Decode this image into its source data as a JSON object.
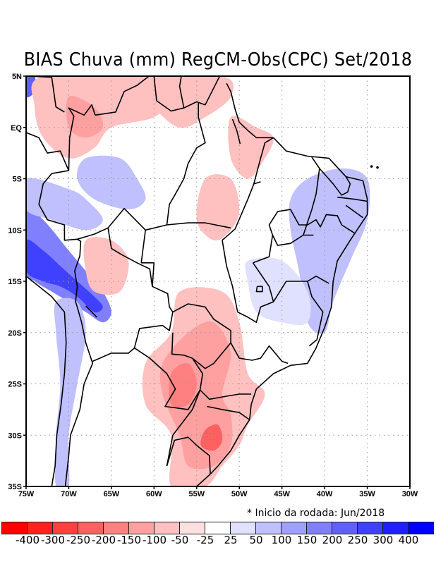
{
  "title": "BIAS Chuva (mm) RegCM-Obs(CPC) Set/2018",
  "note": "* Inicio da rodada: Jun/2018",
  "map": {
    "lon_range": [
      -75,
      -30
    ],
    "lat_range": [
      -35,
      5
    ],
    "y_ticks": [
      {
        "lat": 5,
        "label": "5N"
      },
      {
        "lat": 0,
        "label": "EQ"
      },
      {
        "lat": -5,
        "label": "5S"
      },
      {
        "lat": -10,
        "label": "10S"
      },
      {
        "lat": -15,
        "label": "15S"
      },
      {
        "lat": -20,
        "label": "20S"
      },
      {
        "lat": -25,
        "label": "25S"
      },
      {
        "lat": -30,
        "label": "30S"
      },
      {
        "lat": -35,
        "label": "35S"
      }
    ],
    "x_ticks": [
      {
        "lon": -75,
        "label": "75W"
      },
      {
        "lon": -70,
        "label": "70W"
      },
      {
        "lon": -65,
        "label": "65W"
      },
      {
        "lon": -60,
        "label": "60W"
      },
      {
        "lon": -55,
        "label": "55W"
      },
      {
        "lon": -50,
        "label": "50W"
      },
      {
        "lon": -45,
        "label": "45W"
      },
      {
        "lon": -40,
        "label": "40W"
      },
      {
        "lon": -35,
        "label": "35W"
      },
      {
        "lon": -30,
        "label": "30W"
      }
    ],
    "bias_regions": [
      {
        "name": "andes-peru-wet",
        "level": 4,
        "pts": [
          [
            -75,
            -8
          ],
          [
            -73,
            -9
          ],
          [
            -70,
            -12
          ],
          [
            -68,
            -14
          ],
          [
            -66,
            -16
          ],
          [
            -65,
            -18
          ],
          [
            -66,
            -19
          ],
          [
            -68,
            -18
          ],
          [
            -70,
            -17
          ],
          [
            -72,
            -16
          ],
          [
            -74,
            -15
          ],
          [
            -75,
            -14
          ]
        ]
      },
      {
        "name": "andes-peru-wet-core",
        "level": 6,
        "pts": [
          [
            -75,
            -11
          ],
          [
            -73,
            -12
          ],
          [
            -71,
            -13.5
          ],
          [
            -69,
            -15
          ],
          [
            -67,
            -16.5
          ],
          [
            -66,
            -17.5
          ],
          [
            -67,
            -18
          ],
          [
            -69,
            -16.5
          ],
          [
            -71,
            -15.5
          ],
          [
            -73,
            -15
          ],
          [
            -75,
            -14
          ]
        ]
      },
      {
        "name": "andes-chile-wet",
        "level": 2,
        "pts": [
          [
            -71.5,
            -17
          ],
          [
            -69,
            -17
          ],
          [
            -68,
            -20
          ],
          [
            -69,
            -25
          ],
          [
            -70,
            -30
          ],
          [
            -70,
            -35
          ],
          [
            -71.5,
            -35
          ],
          [
            -71.5,
            -30
          ],
          [
            -71,
            -25
          ],
          [
            -71.5,
            -20
          ]
        ]
      },
      {
        "name": "northwest-amazon-wet",
        "level": 2,
        "pts": [
          [
            -75,
            -5
          ],
          [
            -70,
            -6
          ],
          [
            -68,
            -7
          ],
          [
            -66,
            -9
          ],
          [
            -68,
            -10
          ],
          [
            -72,
            -9
          ],
          [
            -75,
            -8
          ]
        ]
      },
      {
        "name": "central-amazon-wet",
        "level": 2,
        "pts": [
          [
            -68,
            -3
          ],
          [
            -64,
            -3
          ],
          [
            -62,
            -5
          ],
          [
            -61,
            -7
          ],
          [
            -63,
            -8
          ],
          [
            -67,
            -7
          ],
          [
            -69,
            -5
          ]
        ]
      },
      {
        "name": "venezuela-wet",
        "level": 5,
        "pts": [
          [
            -75,
            5
          ],
          [
            -74,
            5
          ],
          [
            -74,
            3.5
          ],
          [
            -75,
            3
          ]
        ]
      },
      {
        "name": "northeast-wet",
        "level": 2,
        "pts": [
          [
            -42,
            -5
          ],
          [
            -38,
            -4
          ],
          [
            -35,
            -5
          ],
          [
            -35,
            -9
          ],
          [
            -37,
            -13
          ],
          [
            -39,
            -17
          ],
          [
            -40,
            -20
          ],
          [
            -42,
            -19
          ],
          [
            -43,
            -14
          ],
          [
            -44,
            -10
          ],
          [
            -44,
            -7
          ]
        ]
      },
      {
        "name": "southeast-wet",
        "level": 1,
        "pts": [
          [
            -49,
            -13
          ],
          [
            -45,
            -13
          ],
          [
            -42,
            -16
          ],
          [
            -42,
            -19
          ],
          [
            -45,
            -19
          ],
          [
            -48,
            -18
          ],
          [
            -49,
            -15
          ]
        ]
      },
      {
        "name": "colombia-dry",
        "level": -2,
        "pts": [
          [
            -73,
            5
          ],
          [
            -60,
            5
          ],
          [
            -58,
            3
          ],
          [
            -60,
            1
          ],
          [
            -65,
            0
          ],
          [
            -67,
            -2
          ],
          [
            -70,
            -3
          ],
          [
            -73,
            -1
          ],
          [
            -74,
            2
          ]
        ]
      },
      {
        "name": "colombia-dry-core",
        "level": -3,
        "pts": [
          [
            -70,
            3
          ],
          [
            -67,
            2
          ],
          [
            -66,
            0
          ],
          [
            -68,
            -1
          ],
          [
            -70,
            0
          ]
        ]
      },
      {
        "name": "guianas-dry",
        "level": -2,
        "pts": [
          [
            -62,
            5
          ],
          [
            -52,
            5
          ],
          [
            -51,
            3
          ],
          [
            -54,
            1
          ],
          [
            -57,
            0
          ],
          [
            -60,
            2
          ]
        ]
      },
      {
        "name": "para-dry",
        "level": -2,
        "pts": [
          [
            -54,
            -5
          ],
          [
            -51,
            -5
          ],
          [
            -50,
            -8
          ],
          [
            -51,
            -10
          ],
          [
            -53,
            -11
          ],
          [
            -55,
            -9
          ]
        ]
      },
      {
        "name": "amapa-dry",
        "level": -2,
        "pts": [
          [
            -51,
            1
          ],
          [
            -48,
            0
          ],
          [
            -46,
            -1
          ],
          [
            -47,
            -3
          ],
          [
            -49,
            -5
          ],
          [
            -51,
            -3
          ]
        ]
      },
      {
        "name": "bolivia-dry",
        "level": -2,
        "pts": [
          [
            -68,
            -11
          ],
          [
            -65,
            -11
          ],
          [
            -63,
            -13
          ],
          [
            -64,
            -16
          ],
          [
            -67,
            -16
          ],
          [
            -68,
            -14
          ]
        ]
      },
      {
        "name": "south-dry",
        "level": -2,
        "pts": [
          [
            -57,
            -16
          ],
          [
            -52,
            -16
          ],
          [
            -50,
            -19
          ],
          [
            -49,
            -24
          ],
          [
            -47,
            -26
          ],
          [
            -49,
            -29
          ],
          [
            -50,
            -31
          ],
          [
            -52,
            -33
          ],
          [
            -54,
            -35
          ],
          [
            -58,
            -35
          ],
          [
            -58,
            -30
          ],
          [
            -61,
            -27
          ],
          [
            -61,
            -23
          ],
          [
            -58,
            -20
          ]
        ]
      },
      {
        "name": "south-dry-mid",
        "level": -3,
        "pts": [
          [
            -56,
            -20
          ],
          [
            -53,
            -19
          ],
          [
            -51,
            -22
          ],
          [
            -52,
            -26
          ],
          [
            -51,
            -28
          ],
          [
            -51,
            -31
          ],
          [
            -53,
            -33
          ],
          [
            -56,
            -33
          ],
          [
            -57,
            -30
          ],
          [
            -59,
            -26
          ],
          [
            -59,
            -23
          ]
        ]
      },
      {
        "name": "paraguay-dry-core",
        "level": -4,
        "pts": [
          [
            -58,
            -24
          ],
          [
            -56,
            -23
          ],
          [
            -55,
            -25
          ],
          [
            -56,
            -27
          ],
          [
            -58,
            -27
          ]
        ]
      },
      {
        "name": "rs-dry-core",
        "level": -5,
        "pts": [
          [
            -54,
            -29.5
          ],
          [
            -52.5,
            -29
          ],
          [
            -52,
            -30.5
          ],
          [
            -53,
            -31.5
          ],
          [
            -54.5,
            -31
          ]
        ]
      }
    ]
  },
  "colorbar": {
    "colors": [
      "#ff0000",
      "#ff2020",
      "#ff4040",
      "#ff6060",
      "#ff8080",
      "#ffa0a0",
      "#ffc0c0",
      "#ffe0e0",
      "#ffffff",
      "#e0e0ff",
      "#c0c0ff",
      "#a0a0ff",
      "#8080ff",
      "#6060ff",
      "#4040ff",
      "#2020ff",
      "#0000ff"
    ],
    "labels": [
      "-400",
      "-300",
      "-250",
      "-200",
      "-150",
      "-100",
      "-50",
      "-25",
      "25",
      "50",
      "100",
      "150",
      "200",
      "250",
      "300",
      "400"
    ]
  }
}
